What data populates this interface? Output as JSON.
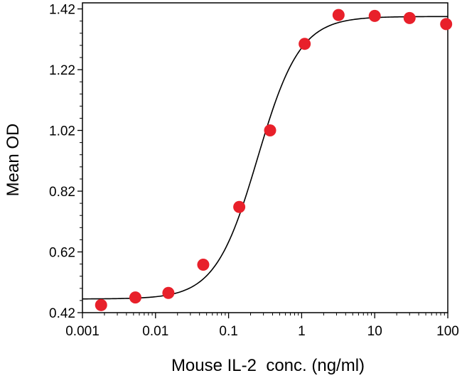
{
  "chart_data": {
    "type": "scatter",
    "title": "",
    "xlabel": "Mouse IL-2  conc. (ng/ml)",
    "ylabel": "Mean OD",
    "x_scale": "log",
    "xlim": [
      0.001,
      100
    ],
    "ylim": [
      0.42,
      1.44
    ],
    "x_ticks": [
      0.001,
      0.01,
      0.1,
      1,
      10,
      100
    ],
    "x_tick_labels": [
      "0.001",
      "0.01",
      "0.1",
      "1",
      "10",
      "100"
    ],
    "y_ticks": [
      0.42,
      0.62,
      0.82,
      1.02,
      1.22,
      1.42
    ],
    "y_tick_labels": [
      "0.42",
      "0.62",
      "0.82",
      "1.02",
      "1.22",
      "1.42"
    ],
    "grid": false,
    "legend": "none",
    "series": [
      {
        "name": "Mean OD",
        "marker": "filled-circle",
        "color": "#e8202a",
        "x": [
          0.0018,
          0.0053,
          0.015,
          0.045,
          0.14,
          0.37,
          1.1,
          3.2,
          10,
          30,
          95
        ],
        "y": [
          0.445,
          0.47,
          0.485,
          0.578,
          0.768,
          1.02,
          1.305,
          1.4,
          1.397,
          1.39,
          1.37
        ]
      }
    ],
    "fit_curve": {
      "model": "4PL",
      "color": "#000000",
      "bottom": 0.465,
      "top": 1.395,
      "ec50": 0.25,
      "hill": 1.5
    }
  }
}
